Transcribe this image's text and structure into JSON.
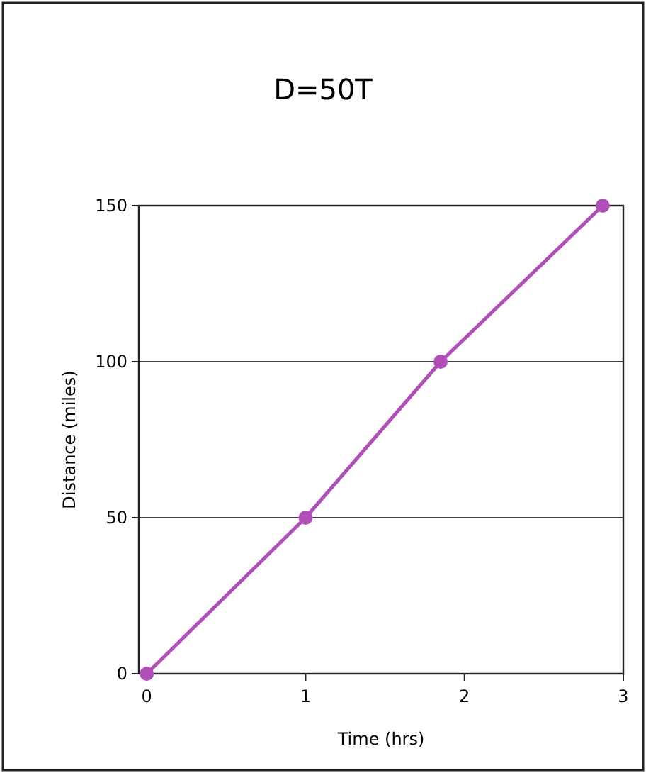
{
  "chart_data": {
    "type": "line",
    "title": "D=50T",
    "xlabel": "Time (hrs)",
    "ylabel": "Distance (miles)",
    "x": [
      0,
      1,
      1.85,
      2.87
    ],
    "series": [
      {
        "color": "#b04fb8",
        "values": [
          0,
          50,
          100,
          150
        ]
      }
    ],
    "xlim": [
      -0.05,
      3
    ],
    "xticks": [
      0,
      1,
      2,
      3
    ],
    "ylim": [
      0,
      150
    ],
    "yticks": [
      0,
      50,
      100,
      150
    ],
    "grid": "y",
    "marker": "circle"
  }
}
